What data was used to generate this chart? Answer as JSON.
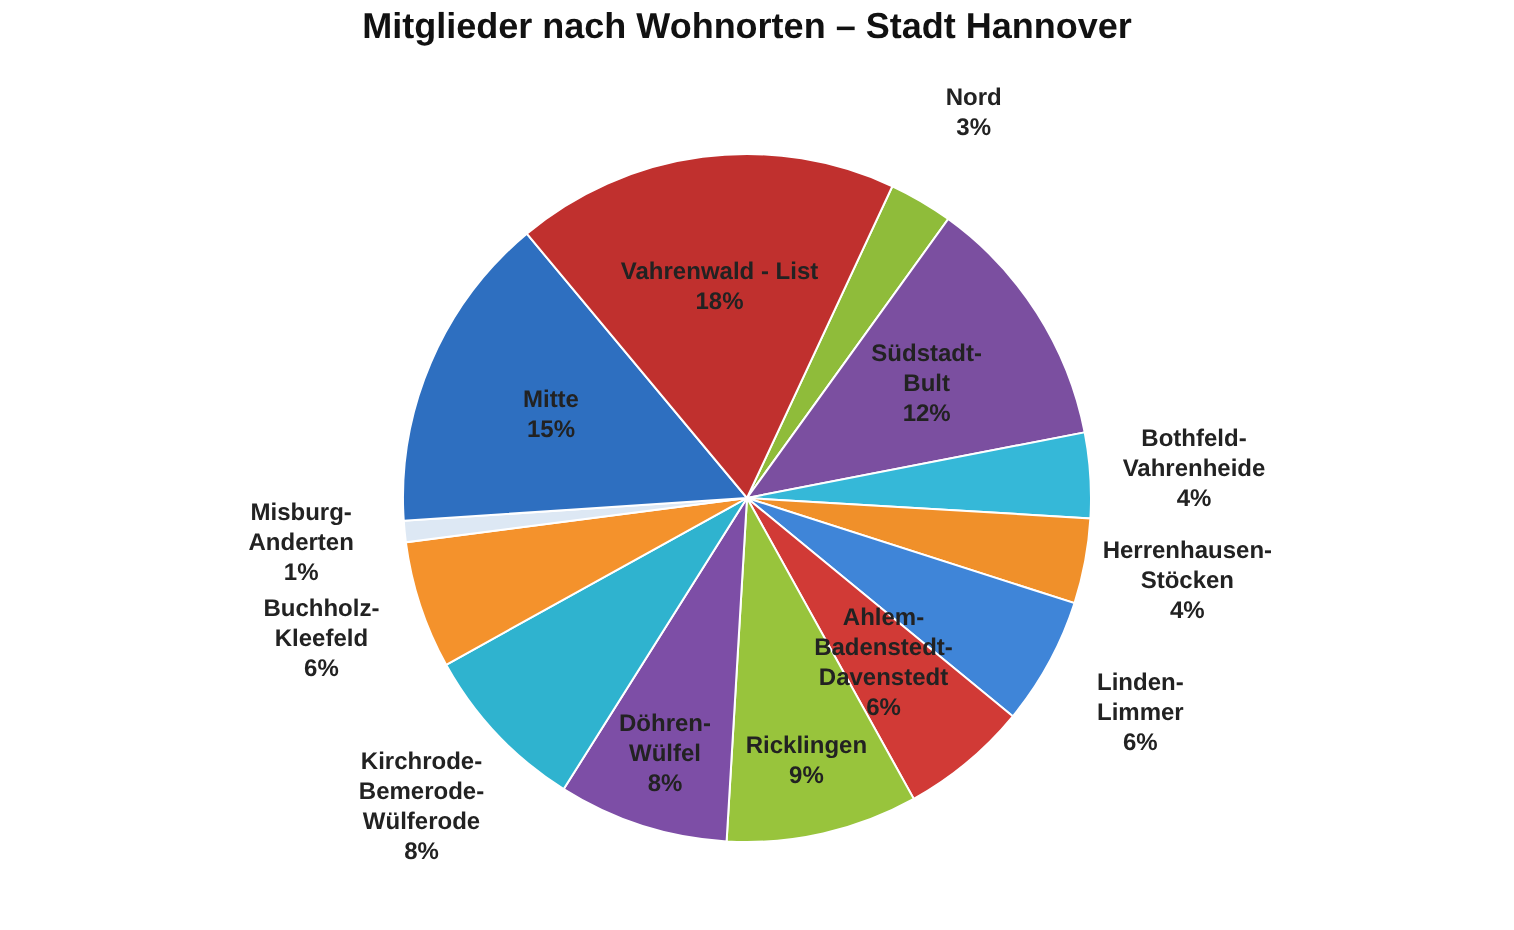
{
  "chart_data": {
    "type": "pie",
    "title": "Mitglieder nach Wohnorten – Stadt Hannover",
    "categories": [
      "Nord",
      "Südstadt-Bult",
      "Bothfeld-Vahrenheide",
      "Herrenhausen-Stöcken",
      "Linden-Limmer",
      "Ahlem-Badenstedt-Davenstedt",
      "Ricklingen",
      "Döhren-Wülfel",
      "Kirchrode-Bemerode-Wülferode",
      "Buchholz-Kleefeld",
      "Misburg-Anderten",
      "Mitte",
      "Vahrenwald - List"
    ],
    "values": [
      3,
      12,
      4,
      4,
      6,
      6,
      9,
      8,
      8,
      6,
      1,
      15,
      18
    ],
    "value_labels": [
      "3%",
      "12%",
      "4%",
      "4%",
      "6%",
      "6%",
      "9%",
      "8%",
      "8%",
      "6%",
      "1%",
      "15%",
      "18%"
    ],
    "colors": [
      "#8fbc3a",
      "#7b4fa0",
      "#35b8d8",
      "#f0902a",
      "#3f85d8",
      "#d13a36",
      "#98c43c",
      "#7d4ea6",
      "#2fb3cf",
      "#f4922c",
      "#dde8f4",
      "#2e6fc0",
      "#c0302e"
    ]
  }
}
